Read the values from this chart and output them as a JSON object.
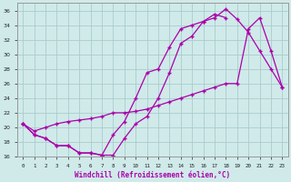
{
  "xlabel": "Windchill (Refroidissement éolien,°C)",
  "xlim": [
    -0.5,
    23.5
  ],
  "ylim": [
    16,
    37
  ],
  "xticks": [
    0,
    1,
    2,
    3,
    4,
    5,
    6,
    7,
    8,
    9,
    10,
    11,
    12,
    13,
    14,
    15,
    16,
    17,
    18,
    19,
    20,
    21,
    22,
    23
  ],
  "yticks": [
    16,
    18,
    20,
    22,
    24,
    26,
    28,
    30,
    32,
    34,
    36
  ],
  "bg_color": "#d0eaea",
  "grid_color": "#aacccc",
  "line_color": "#aa00aa",
  "curve1_x": [
    0,
    1,
    2,
    3,
    4,
    5,
    6,
    7,
    8,
    9,
    10,
    11,
    12,
    13,
    14,
    15,
    16,
    17,
    18
  ],
  "curve1_y": [
    20.5,
    19.0,
    18.5,
    17.5,
    17.5,
    16.5,
    16.5,
    16.2,
    16.2,
    18.5,
    20.5,
    21.5,
    24.0,
    27.5,
    31.5,
    32.5,
    34.5,
    35.5,
    35.0
  ],
  "curve2_x": [
    0,
    1,
    2,
    3,
    4,
    5,
    6,
    7,
    8,
    9,
    10,
    11,
    12,
    13,
    14,
    15,
    16,
    17,
    18,
    19,
    20,
    21,
    22,
    23
  ],
  "curve2_y": [
    20.5,
    19.0,
    18.5,
    17.5,
    17.5,
    16.5,
    16.5,
    16.2,
    19.0,
    20.8,
    24.0,
    27.5,
    28.0,
    31.0,
    33.5,
    34.0,
    34.5,
    35.0,
    36.2,
    34.8,
    33.0,
    30.5,
    28.0,
    25.5
  ],
  "curve3_x": [
    0,
    1,
    2,
    3,
    4,
    5,
    6,
    7,
    8,
    9,
    10,
    11,
    12,
    13,
    14,
    15,
    16,
    17,
    18,
    19,
    20,
    21,
    22,
    23
  ],
  "curve3_y": [
    20.5,
    19.5,
    20.0,
    20.5,
    20.8,
    21.0,
    21.2,
    21.5,
    22.0,
    22.0,
    22.2,
    22.5,
    23.0,
    23.5,
    24.0,
    24.5,
    25.0,
    25.5,
    26.0,
    26.0,
    33.5,
    35.0,
    30.5,
    25.5
  ]
}
